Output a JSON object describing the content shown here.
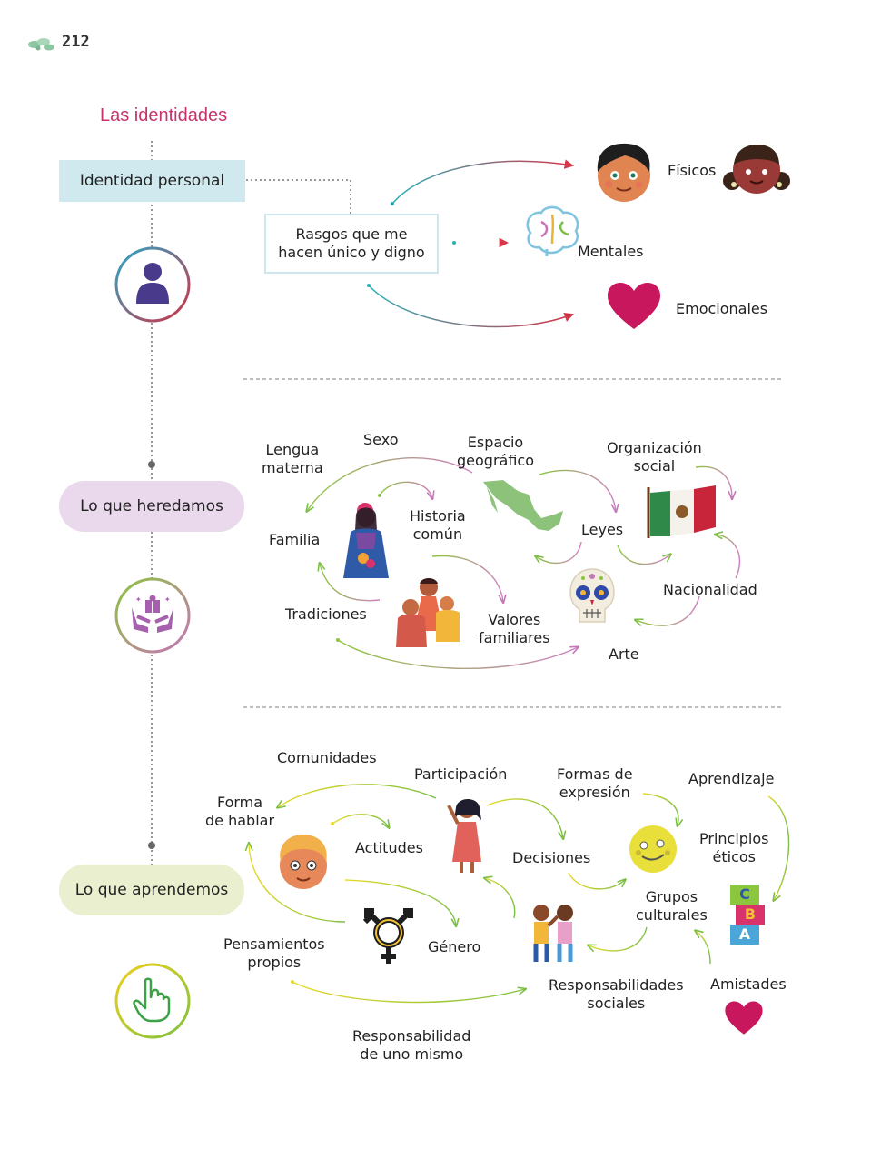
{
  "page_number": "212",
  "heading": "Las identidades",
  "section1": {
    "box_title": "Identidad personal",
    "rasgos_line1": "Rasgos que me",
    "rasgos_line2": "hacen único y digno",
    "fisicos": "Físicos",
    "mentales": "Mentales",
    "emocionales": "Emocionales"
  },
  "section2": {
    "title": "Lo que heredamos",
    "lengua_1": "Lengua",
    "lengua_2": "materna",
    "sexo": "Sexo",
    "espacio_1": "Espacio",
    "espacio_2": "geográfico",
    "organizacion_1": "Organización",
    "organizacion_2": "social",
    "familia": "Familia",
    "historia_1": "Historia",
    "historia_2": "común",
    "leyes": "Leyes",
    "nacionalidad": "Nacionalidad",
    "tradiciones": "Tradiciones",
    "valores_1": "Valores",
    "valores_2": "familiares",
    "arte": "Arte"
  },
  "section3": {
    "title": "Lo que aprendemos",
    "comunidades": "Comunidades",
    "participacion": "Participación",
    "formas_1": "Formas de",
    "formas_2": "expresión",
    "aprendizaje": "Aprendizaje",
    "forma_1": "Forma",
    "forma_2": "de hablar",
    "actitudes": "Actitudes",
    "decisiones": "Decisiones",
    "principios_1": "Principios",
    "principios_2": "éticos",
    "grupos_1": "Grupos",
    "grupos_2": "culturales",
    "pensamientos_1": "Pensamientos",
    "pensamientos_2": "propios",
    "genero": "Género",
    "resp_sociales_1": "Responsabilidades",
    "resp_sociales_2": "sociales",
    "amistades": "Amistades",
    "resp_mismo_1": "Responsabilidad",
    "resp_mismo_2": "de uno mismo",
    "blocks": [
      "C",
      "B",
      "A"
    ]
  },
  "colors": {
    "heading": "#c9336d",
    "box": "#cfe9ee",
    "pill_heredamos": "#ead8ec",
    "pill_aprendemos": "#e9efcf",
    "heart": "#c8175d",
    "person_icon": "#4a3a8c"
  }
}
